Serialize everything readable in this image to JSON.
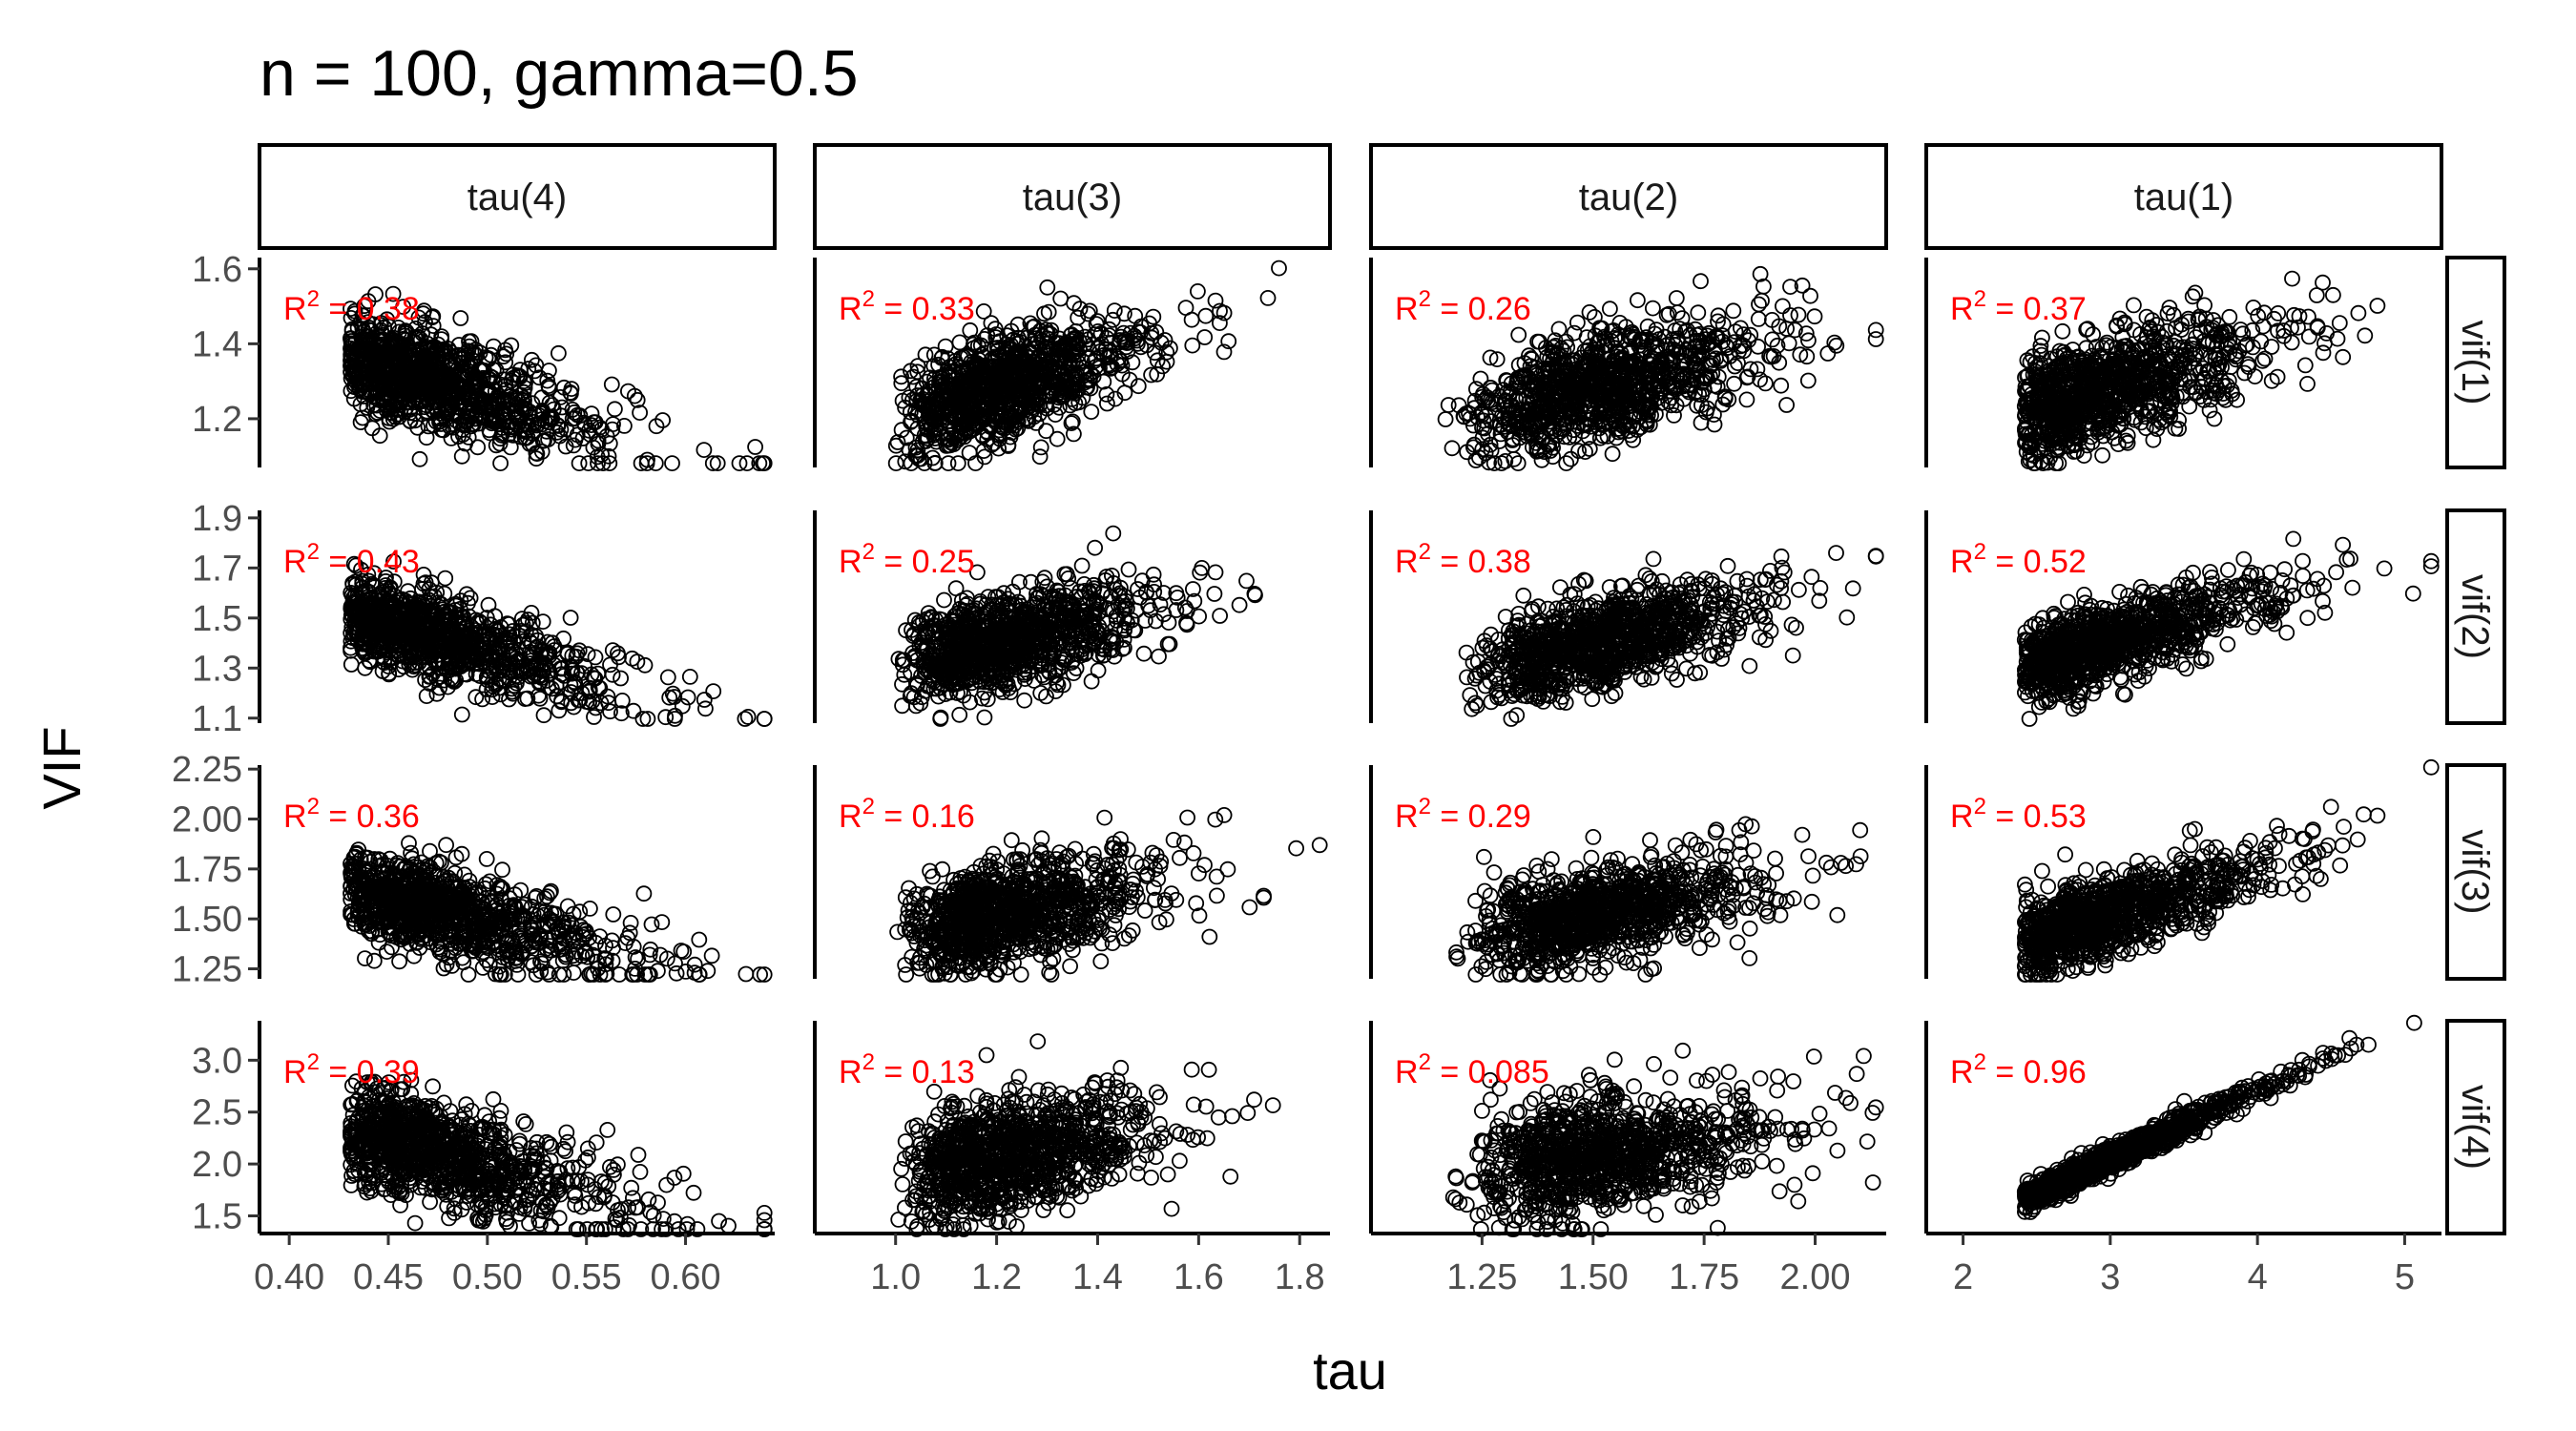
{
  "title": "n = 100, gamma=0.5",
  "xlabel": "tau",
  "ylabel": "VIF",
  "colors": {
    "points": "#000000",
    "annotation": "#ff0000",
    "strip_border": "#000000"
  },
  "chart_data": {
    "type": "scatter",
    "title": "n = 100, gamma=0.5",
    "xlabel": "tau",
    "ylabel": "VIF",
    "grid": false,
    "legend": "none",
    "columns": [
      {
        "label": "tau(4)",
        "xlim": [
          0.385,
          0.645
        ],
        "xticks": [
          0.4,
          0.45,
          0.5,
          0.55,
          0.6
        ],
        "xtick_labels": [
          "0.40",
          "0.45",
          "0.50",
          "0.55",
          "0.60"
        ]
      },
      {
        "label": "tau(3)",
        "xlim": [
          0.84,
          1.86
        ],
        "xticks": [
          1.0,
          1.2,
          1.4,
          1.6,
          1.8
        ],
        "xtick_labels": [
          "1.0",
          "1.2",
          "1.4",
          "1.6",
          "1.8"
        ]
      },
      {
        "label": "tau(2)",
        "xlim": [
          1.0,
          2.16
        ],
        "xticks": [
          1.25,
          1.5,
          1.75,
          2.0
        ],
        "xtick_labels": [
          "1.25",
          "1.50",
          "1.75",
          "2.00"
        ]
      },
      {
        "label": "tau(1)",
        "xlim": [
          1.75,
          5.25
        ],
        "xticks": [
          2,
          3,
          4,
          5
        ],
        "xtick_labels": [
          "2",
          "3",
          "4",
          "5"
        ]
      }
    ],
    "rows": [
      {
        "label": "vif(1)",
        "ylim": [
          1.07,
          1.63
        ],
        "yticks": [
          1.2,
          1.4,
          1.6
        ],
        "ytick_labels": [
          "1.2",
          "1.4",
          "1.6"
        ]
      },
      {
        "label": "vif(2)",
        "ylim": [
          1.08,
          1.93
        ],
        "yticks": [
          1.1,
          1.3,
          1.5,
          1.7,
          1.9
        ],
        "ytick_labels": [
          "1.1",
          "1.3",
          "1.5",
          "1.7",
          "1.9"
        ]
      },
      {
        "label": "vif(3)",
        "ylim": [
          1.2,
          2.27
        ],
        "yticks": [
          1.25,
          1.5,
          1.75,
          2.0,
          2.25
        ],
        "ytick_labels": [
          "1.25",
          "1.50",
          "1.75",
          "2.00",
          "2.25"
        ]
      },
      {
        "label": "vif(4)",
        "ylim": [
          1.33,
          3.38
        ],
        "yticks": [
          1.5,
          2.0,
          2.5,
          3.0
        ],
        "ytick_labels": [
          "1.5",
          "2.0",
          "2.5",
          "3.0"
        ]
      }
    ],
    "panels": [
      {
        "row": 0,
        "col": 0,
        "r2": "0.38",
        "corr": -0.62,
        "x_center": 0.48,
        "x_sd": 0.035,
        "x_skew": 0.6,
        "y_center": 1.29,
        "y_sd": 0.085,
        "n": 1000
      },
      {
        "row": 0,
        "col": 1,
        "r2": "0.33",
        "corr": 0.57,
        "x_center": 1.23,
        "x_sd": 0.12,
        "x_skew": 0.4,
        "y_center": 1.29,
        "y_sd": 0.085,
        "n": 1000
      },
      {
        "row": 0,
        "col": 2,
        "r2": "0.26",
        "corr": 0.51,
        "x_center": 1.53,
        "x_sd": 0.16,
        "x_skew": 0.3,
        "y_center": 1.29,
        "y_sd": 0.085,
        "n": 1000
      },
      {
        "row": 0,
        "col": 3,
        "r2": "0.37",
        "corr": 0.61,
        "x_center": 3.05,
        "x_sd": 0.45,
        "x_skew": 0.6,
        "y_center": 1.29,
        "y_sd": 0.085,
        "n": 1000
      },
      {
        "row": 1,
        "col": 0,
        "r2": "0.43",
        "corr": -0.66,
        "x_center": 0.48,
        "x_sd": 0.035,
        "x_skew": 0.6,
        "y_center": 1.41,
        "y_sd": 0.11,
        "n": 1000
      },
      {
        "row": 1,
        "col": 1,
        "r2": "0.25",
        "corr": 0.5,
        "x_center": 1.23,
        "x_sd": 0.12,
        "x_skew": 0.4,
        "y_center": 1.41,
        "y_sd": 0.11,
        "n": 1000
      },
      {
        "row": 1,
        "col": 2,
        "r2": "0.38",
        "corr": 0.62,
        "x_center": 1.53,
        "x_sd": 0.16,
        "x_skew": 0.3,
        "y_center": 1.41,
        "y_sd": 0.11,
        "n": 1000
      },
      {
        "row": 1,
        "col": 3,
        "r2": "0.52",
        "corr": 0.72,
        "x_center": 3.05,
        "x_sd": 0.45,
        "x_skew": 0.6,
        "y_center": 1.41,
        "y_sd": 0.11,
        "n": 1000
      },
      {
        "row": 2,
        "col": 0,
        "r2": "0.36",
        "corr": -0.6,
        "x_center": 0.48,
        "x_sd": 0.035,
        "x_skew": 0.6,
        "y_center": 1.53,
        "y_sd": 0.14,
        "n": 1000
      },
      {
        "row": 2,
        "col": 1,
        "r2": "0.16",
        "corr": 0.4,
        "x_center": 1.23,
        "x_sd": 0.12,
        "x_skew": 0.4,
        "y_center": 1.53,
        "y_sd": 0.14,
        "n": 1000
      },
      {
        "row": 2,
        "col": 2,
        "r2": "0.29",
        "corr": 0.54,
        "x_center": 1.53,
        "x_sd": 0.16,
        "x_skew": 0.3,
        "y_center": 1.53,
        "y_sd": 0.14,
        "n": 1000
      },
      {
        "row": 2,
        "col": 3,
        "r2": "0.53",
        "corr": 0.73,
        "x_center": 3.05,
        "x_sd": 0.45,
        "x_skew": 0.6,
        "y_center": 1.53,
        "y_sd": 0.14,
        "n": 1000
      },
      {
        "row": 3,
        "col": 0,
        "r2": "0.39",
        "corr": -0.62,
        "x_center": 0.48,
        "x_sd": 0.035,
        "x_skew": 0.6,
        "y_center": 2.08,
        "y_sd": 0.3,
        "n": 1000
      },
      {
        "row": 3,
        "col": 1,
        "r2": "0.13",
        "corr": 0.36,
        "x_center": 1.23,
        "x_sd": 0.12,
        "x_skew": 0.4,
        "y_center": 2.08,
        "y_sd": 0.3,
        "n": 1000
      },
      {
        "row": 3,
        "col": 2,
        "r2": "0.085",
        "corr": 0.29,
        "x_center": 1.53,
        "x_sd": 0.16,
        "x_skew": 0.3,
        "y_center": 2.08,
        "y_sd": 0.3,
        "n": 1000
      },
      {
        "row": 3,
        "col": 3,
        "r2": "0.96",
        "corr": 0.98,
        "x_center": 3.05,
        "x_sd": 0.45,
        "x_skew": 0.6,
        "y_center": 2.08,
        "y_sd": 0.3,
        "n": 1000
      }
    ]
  }
}
